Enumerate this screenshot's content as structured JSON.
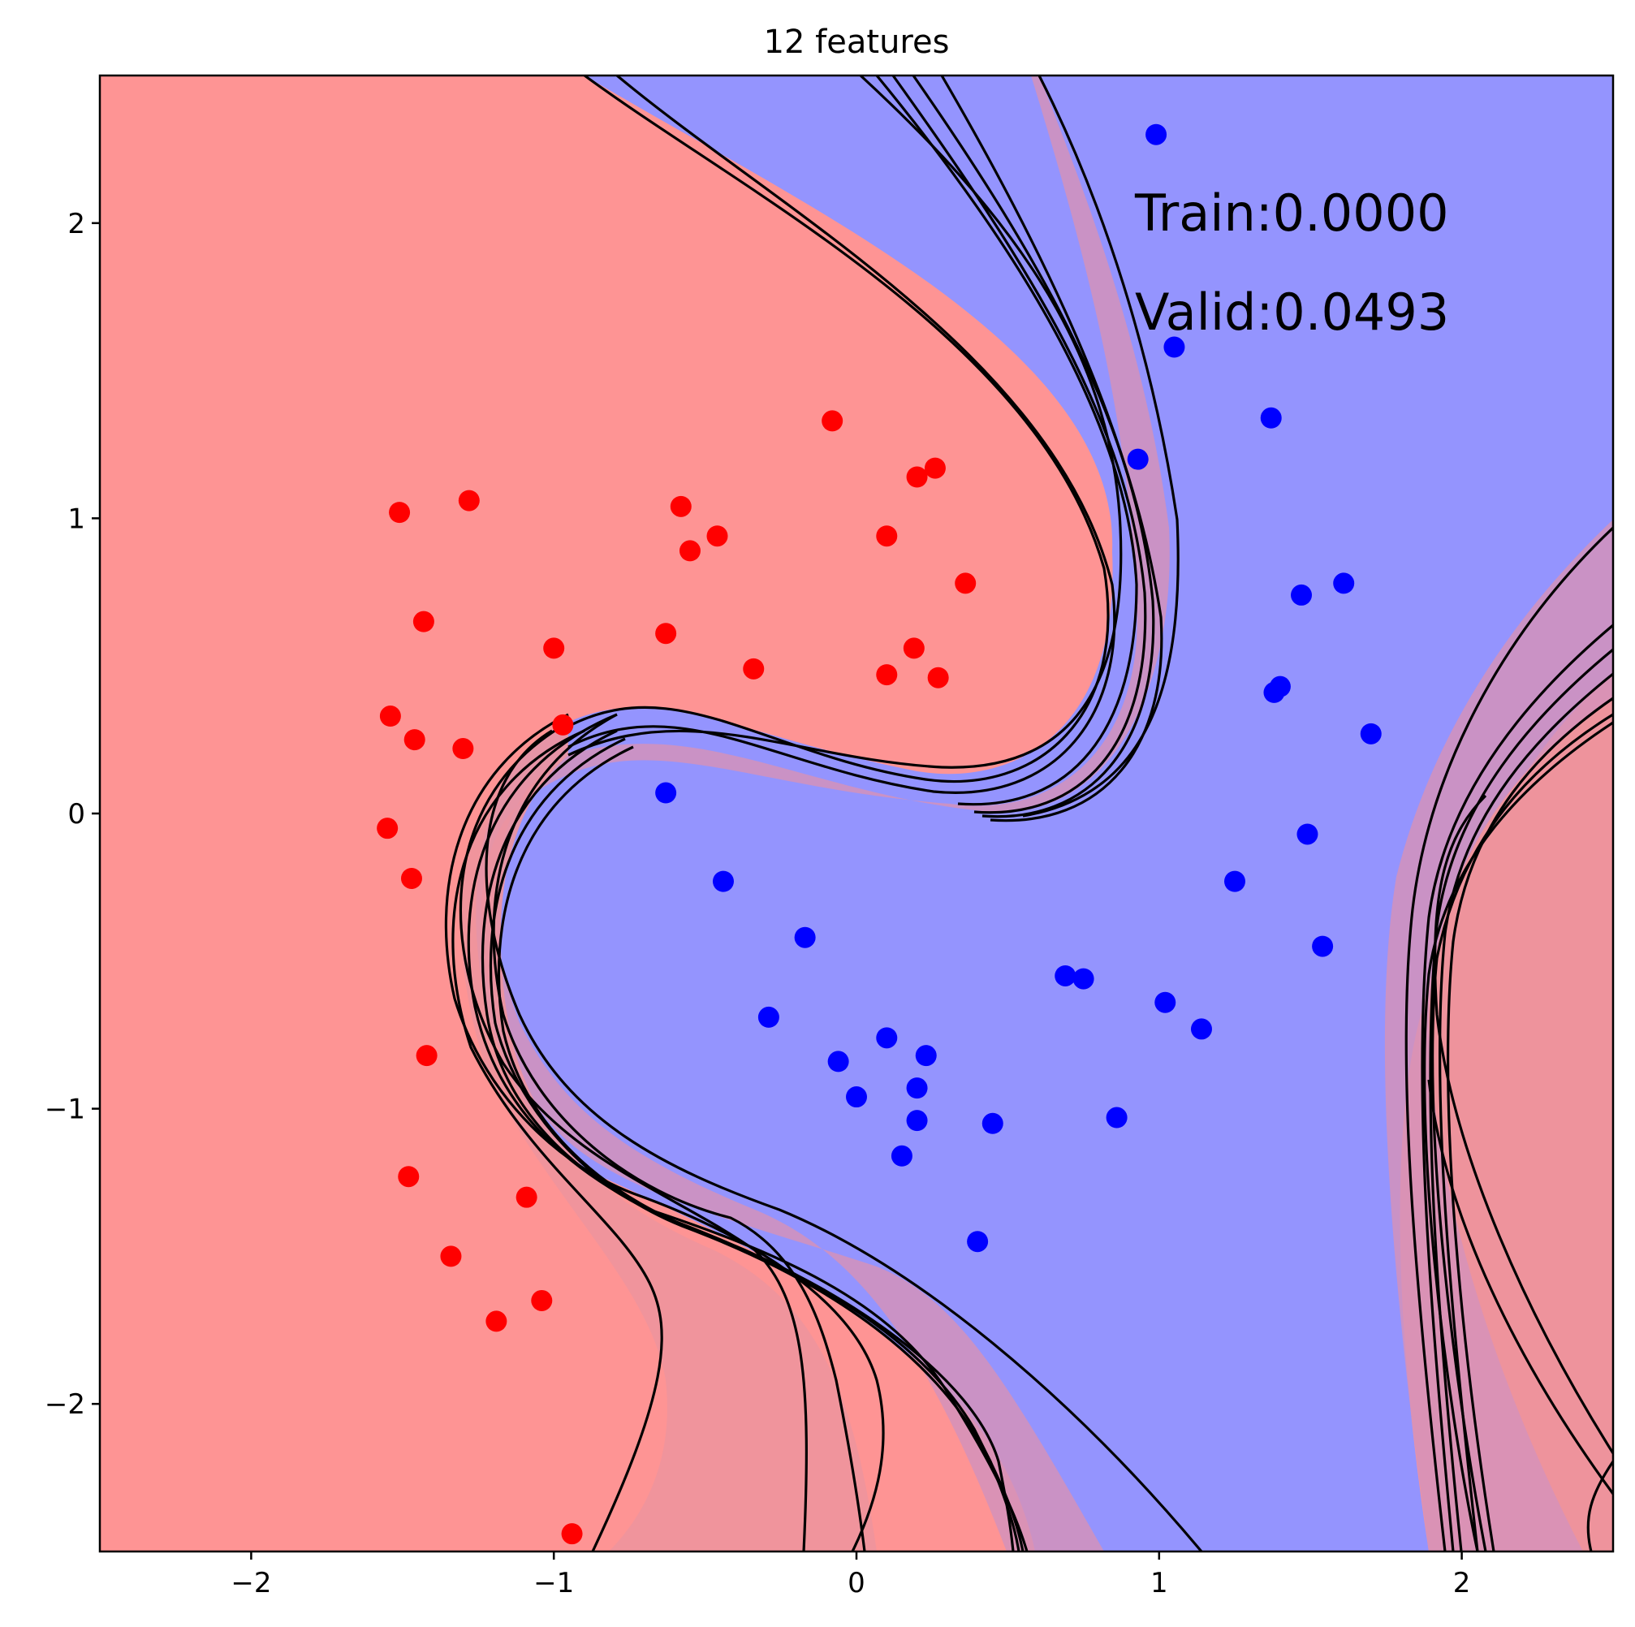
{
  "title": "12 features",
  "annotations": {
    "train": "Train:0.0000",
    "valid": "Valid:0.0493"
  },
  "colors": {
    "red_region": "#fe9494",
    "blue_region": "#9494fe",
    "mixed_region": "#d492bb",
    "red_points": "#ff0000",
    "blue_points": "#0000ff",
    "boundaries": "#000000"
  },
  "chart_data": {
    "type": "scatter",
    "title": "12 features",
    "xlim": [
      -2.5,
      2.5
    ],
    "ylim": [
      -2.5,
      2.5
    ],
    "xticks": [
      -2,
      -1,
      0,
      1,
      2
    ],
    "yticks": [
      -2,
      -1,
      0,
      1,
      2
    ],
    "xtick_labels": [
      "−2",
      "−1",
      "0",
      "1",
      "2"
    ],
    "ytick_labels": [
      "−2",
      "−1",
      "0",
      "1",
      "2"
    ],
    "grid": false,
    "series": [
      {
        "color": "#ff0000",
        "points": [
          [
            -0.08,
            1.33
          ],
          [
            0.26,
            1.17
          ],
          [
            0.2,
            1.14
          ],
          [
            -1.28,
            1.06
          ],
          [
            -1.51,
            1.02
          ],
          [
            -0.58,
            1.04
          ],
          [
            -0.46,
            0.94
          ],
          [
            -0.55,
            0.89
          ],
          [
            0.1,
            0.94
          ],
          [
            0.36,
            0.78
          ],
          [
            -1.43,
            0.65
          ],
          [
            -1.0,
            0.56
          ],
          [
            -0.63,
            0.61
          ],
          [
            -0.34,
            0.49
          ],
          [
            0.19,
            0.56
          ],
          [
            0.1,
            0.47
          ],
          [
            0.27,
            0.46
          ],
          [
            -1.54,
            0.33
          ],
          [
            -1.46,
            0.25
          ],
          [
            -1.3,
            0.22
          ],
          [
            -0.97,
            0.3
          ],
          [
            -1.55,
            -0.05
          ],
          [
            -1.47,
            -0.22
          ],
          [
            -1.42,
            -0.82
          ],
          [
            -1.48,
            -1.23
          ],
          [
            -1.09,
            -1.3
          ],
          [
            -1.34,
            -1.5
          ],
          [
            -1.04,
            -1.65
          ],
          [
            -1.19,
            -1.72
          ],
          [
            -0.94,
            -2.44
          ]
        ]
      },
      {
        "color": "#0000ff",
        "points": [
          [
            0.99,
            2.3
          ],
          [
            1.05,
            1.58
          ],
          [
            1.37,
            1.34
          ],
          [
            0.93,
            1.2
          ],
          [
            1.61,
            0.78
          ],
          [
            1.47,
            0.74
          ],
          [
            1.4,
            0.43
          ],
          [
            1.38,
            0.41
          ],
          [
            1.7,
            0.27
          ],
          [
            -0.63,
            0.07
          ],
          [
            1.49,
            -0.07
          ],
          [
            -0.44,
            -0.23
          ],
          [
            1.25,
            -0.23
          ],
          [
            -0.17,
            -0.42
          ],
          [
            1.54,
            -0.45
          ],
          [
            0.69,
            -0.55
          ],
          [
            0.75,
            -0.56
          ],
          [
            1.02,
            -0.64
          ],
          [
            -0.29,
            -0.69
          ],
          [
            1.14,
            -0.73
          ],
          [
            0.1,
            -0.76
          ],
          [
            0.23,
            -0.82
          ],
          [
            -0.06,
            -0.84
          ],
          [
            0.0,
            -0.96
          ],
          [
            0.2,
            -0.93
          ],
          [
            0.2,
            -1.04
          ],
          [
            0.45,
            -1.05
          ],
          [
            0.86,
            -1.03
          ],
          [
            0.15,
            -1.16
          ],
          [
            0.4,
            -1.45
          ]
        ]
      }
    ]
  }
}
